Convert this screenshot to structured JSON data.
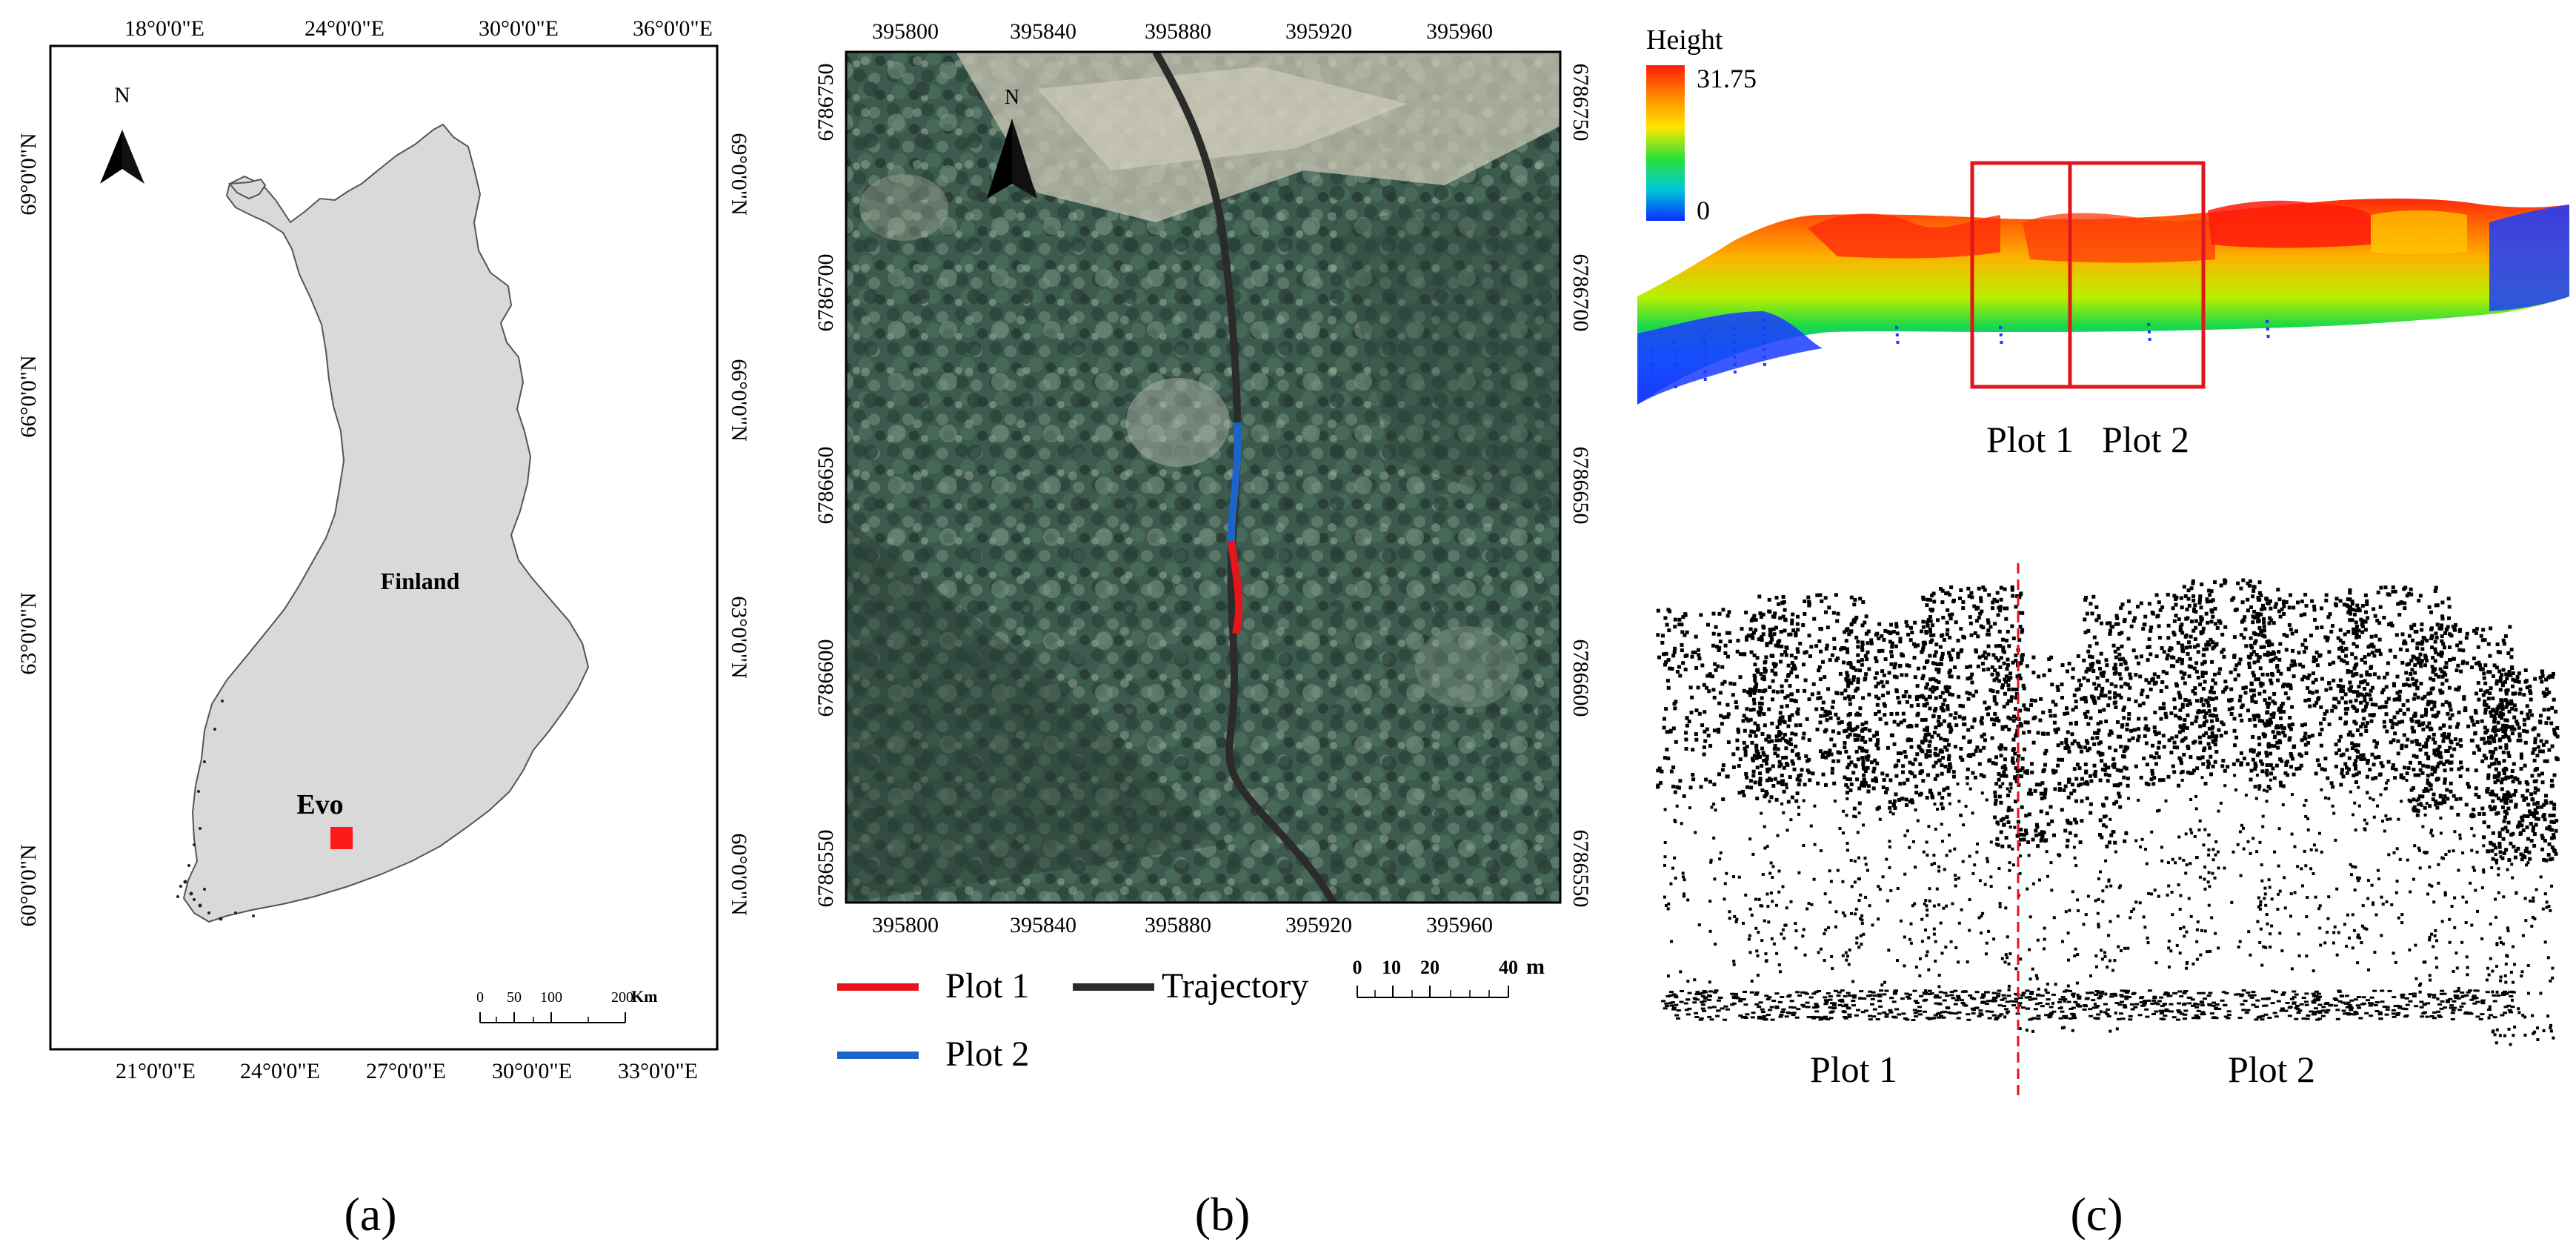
{
  "panel_a": {
    "label": "(a)",
    "north": "N",
    "country": "Finland",
    "site": "Evo",
    "site_color": "#ff1a1a",
    "lon_ticks_top": [
      "18°0'0\"E",
      "24°0'0\"E",
      "30°0'0\"E",
      "36°0'0\"E"
    ],
    "lon_ticks_bottom": [
      "21°0'0\"E",
      "24°0'0\"E",
      "27°0'0\"E",
      "30°0'0\"E",
      "33°0'0\"E"
    ],
    "lat_ticks": [
      "69°0'0\"N",
      "66°0'0\"N",
      "63°0'0\"N",
      "60°0'0\"N"
    ],
    "scale_ticks": [
      "0",
      "50",
      "100",
      "200"
    ],
    "scale_unit": "Km"
  },
  "panel_b": {
    "label": "(b)",
    "north": "N",
    "x_ticks": [
      "395800",
      "395840",
      "395880",
      "395920",
      "395960"
    ],
    "y_ticks": [
      "6786750",
      "6786700",
      "6786650",
      "6786600",
      "6786550"
    ],
    "legend": {
      "plot1": "Plot 1",
      "plot2": "Plot 2",
      "trajectory": "Trajectory"
    },
    "colors": {
      "plot1": "#e8141c",
      "plot2": "#1d64c8",
      "trajectory": "#2b2b2b"
    },
    "scale_ticks": [
      "0",
      "10",
      "20",
      "40"
    ],
    "scale_unit": "m"
  },
  "panel_c": {
    "label": "(c)",
    "colorbar_title": "Height",
    "colorbar_max": "31.75",
    "colorbar_min": "0",
    "top_labels": [
      "Plot 1",
      "Plot 2"
    ],
    "bottom_labels": [
      "Plot 1",
      "Plot 2"
    ],
    "box_color": "#e0161c",
    "divider_color": "#e0161c"
  }
}
